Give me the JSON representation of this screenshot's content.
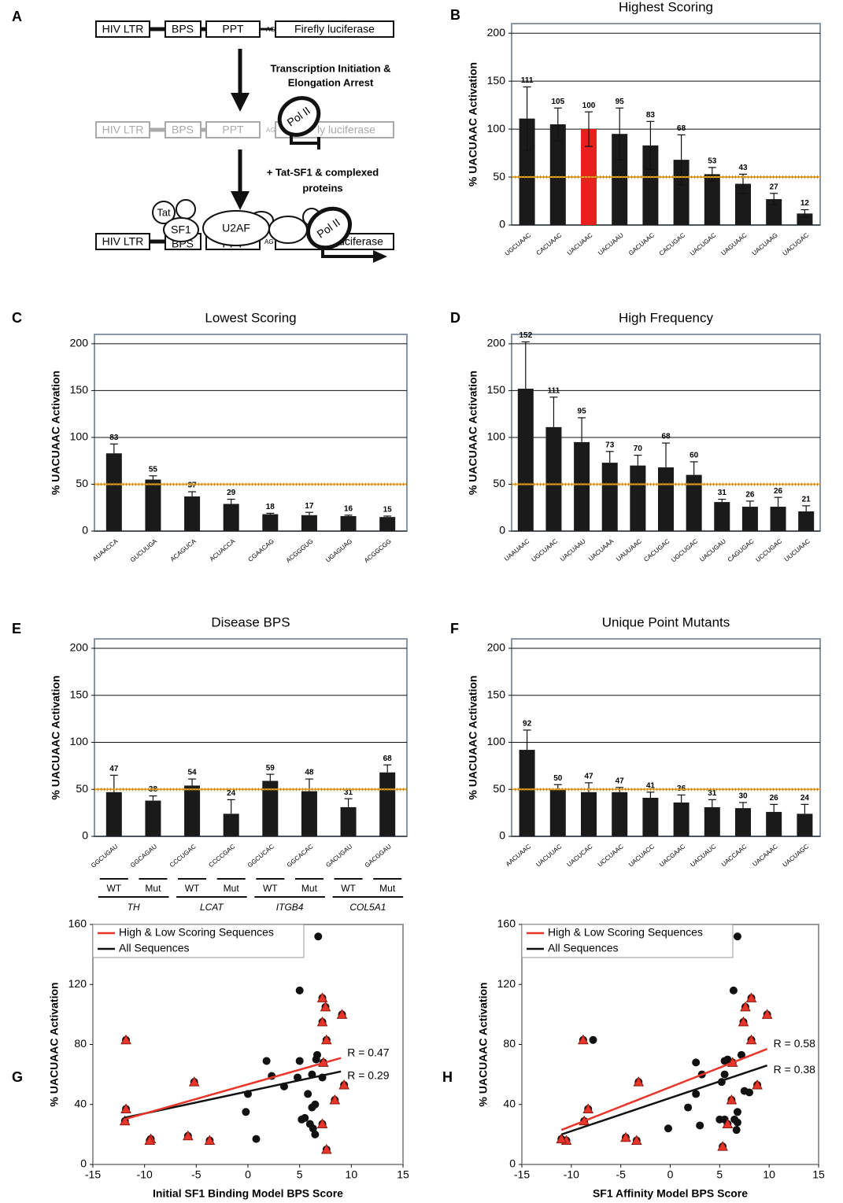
{
  "diagram": {
    "panel": "A",
    "step1": {
      "boxes": [
        "HIV LTR",
        "BPS",
        "PPT",
        "Firefly luciferase"
      ],
      "ag": "AG"
    },
    "arrow1": [
      "Transcription Initiation &",
      "Elongation Arrest"
    ],
    "step2": {
      "boxes": [
        "HIV LTR",
        "BPS",
        "PPT",
        "ly luciferase"
      ],
      "ag": "AG",
      "pol": "Pol II"
    },
    "arrow2": [
      "+ Tat-SF1 & complexed",
      "proteins"
    ],
    "step3": {
      "boxes": [
        "HIV LTR",
        "BPS",
        "PPT",
        "ly luciferase"
      ],
      "ag": "AG",
      "factors": [
        "Tat",
        "SF1",
        "U2AF"
      ],
      "pol": "Pol II"
    }
  },
  "chart_data": [
    {
      "type": "bar",
      "panel": "B",
      "title": "Highest Scoring",
      "ylabel": "% UACUAAC Activation",
      "categories": [
        "UGCUAAC",
        "CACUAAC",
        "UACUAAC",
        "UACUAAU",
        "GACUAAC",
        "CACUGAC",
        "UACUGAC",
        "UAGUAAC",
        "UACUAAG",
        "UACUGAC"
      ],
      "values": [
        111,
        105,
        100,
        95,
        83,
        68,
        53,
        43,
        27,
        12
      ],
      "errors": [
        33,
        17,
        18,
        27,
        25,
        26,
        7,
        10,
        6,
        4
      ],
      "error_bars": "both",
      "colors": [
        "#1a1a1a",
        "#1a1a1a",
        "#e8201e",
        "#1a1a1a",
        "#1a1a1a",
        "#1a1a1a",
        "#1a1a1a",
        "#1a1a1a",
        "#1a1a1a",
        "#1a1a1a"
      ],
      "threshold": 50,
      "ylim": [
        0,
        210
      ],
      "yticks": [
        0,
        50,
        100,
        150,
        200
      ],
      "grid": true
    },
    {
      "type": "bar",
      "panel": "C",
      "title": "Lowest Scoring",
      "ylabel": "% UACUAAC Activation",
      "categories": [
        "AUAACCA",
        "GUCUUGA",
        "ACAGUCA",
        "ACUACCA",
        "CGAACAG",
        "ACGGGUG",
        "UGAGUAG",
        "ACGGCGG"
      ],
      "values": [
        83,
        55,
        37,
        29,
        18,
        17,
        16,
        15
      ],
      "errors": [
        10,
        4,
        5,
        5,
        1,
        3,
        1,
        1
      ],
      "error_bars": "up",
      "color": "#1a1a1a",
      "threshold": 50,
      "ylim": [
        0,
        210
      ],
      "yticks": [
        0,
        50,
        100,
        150,
        200
      ],
      "grid": true
    },
    {
      "type": "bar",
      "panel": "D",
      "title": "High Frequency",
      "ylabel": "% UACUAAC Activation",
      "categories": [
        "UAAUAAC",
        "UGCUAAC",
        "UACUAAU",
        "UACUAAA",
        "UAUUAAC",
        "CACUGAC",
        "UGCUGAC",
        "UACUGAU",
        "CAGUGAC",
        "UCCUGAC",
        "UUCUAAC"
      ],
      "values": [
        152,
        111,
        95,
        73,
        70,
        68,
        60,
        31,
        26,
        26,
        21
      ],
      "errors": [
        50,
        32,
        26,
        12,
        11,
        26,
        14,
        3,
        6,
        10,
        6
      ],
      "error_bars": "up",
      "color": "#1a1a1a",
      "threshold": 50,
      "ylim": [
        0,
        210
      ],
      "yticks": [
        0,
        50,
        100,
        150,
        200
      ],
      "grid": true
    },
    {
      "type": "bar",
      "panel": "E",
      "title": "Disease BPS",
      "ylabel": "% UACUAAC Activation",
      "categories": [
        "GGCUGAU",
        "GGCAGAU",
        "CCCUGAC",
        "CCCCGAC",
        "GGCUCAC",
        "GGCACAC",
        "GACUGAU",
        "GACGGAU"
      ],
      "values": [
        47,
        38,
        54,
        24,
        59,
        48,
        31,
        68
      ],
      "errors": [
        18,
        5,
        7,
        15,
        7,
        13,
        9,
        8
      ],
      "error_bars": "up",
      "color": "#1a1a1a",
      "subgroups": [
        "WT",
        "Mut",
        "WT",
        "Mut",
        "WT",
        "Mut",
        "WT",
        "Mut"
      ],
      "groups": [
        "TH",
        "LCAT",
        "ITGB4",
        "COL5A1"
      ],
      "threshold": 50,
      "ylim": [
        0,
        210
      ],
      "yticks": [
        0,
        50,
        100,
        150,
        200
      ],
      "grid": true
    },
    {
      "type": "bar",
      "panel": "F",
      "title": "Unique Point Mutants",
      "ylabel": "% UACUAAC Activation",
      "categories": [
        "AACUAAC",
        "UACUUAC",
        "UACUCAC",
        "UCCUAAC",
        "UACUACC",
        "UACGAAC",
        "UACUAUC",
        "UACCAAC",
        "UACAAAC",
        "UACUAGC"
      ],
      "values": [
        92,
        50,
        47,
        47,
        41,
        36,
        31,
        30,
        26,
        24
      ],
      "errors": [
        21,
        5,
        10,
        5,
        6,
        8,
        8,
        6,
        8,
        10
      ],
      "error_bars": "up",
      "color": "#1a1a1a",
      "threshold": 50,
      "ylim": [
        0,
        210
      ],
      "yticks": [
        0,
        50,
        100,
        150,
        200
      ],
      "grid": true
    },
    {
      "type": "scatter",
      "panel": "G",
      "xlabel": "Initial SF1 Binding Model BPS Score",
      "ylabel": "% UACUAAC Activation",
      "xlim": [
        -15,
        15
      ],
      "xticks": [
        -15,
        -10,
        -5,
        0,
        5,
        10,
        15
      ],
      "ylim": [
        0,
        160
      ],
      "yticks": [
        0,
        40,
        80,
        120,
        160
      ],
      "legend": "top-left",
      "series": [
        {
          "name": "High & Low Scoring Sequences",
          "color": "#e8352a",
          "marker": "triangle",
          "x": [
            7.2,
            7.5,
            9.1,
            7.2,
            7.6,
            7.3,
            9.3,
            8.4,
            7.2,
            7.6,
            -11.8,
            -5.2,
            -11.8,
            -11.9,
            -5.8,
            -9.4,
            -3.7,
            -9.5
          ],
          "y": [
            111,
            105,
            100,
            95,
            83,
            68,
            53,
            43,
            27,
            10,
            83,
            55,
            37,
            29,
            19,
            17,
            16,
            16
          ],
          "fit_x": [
            -12,
            9
          ],
          "fit_y": [
            30,
            71
          ],
          "r_label": "R = 0.47"
        },
        {
          "name": "All Sequences",
          "color": "#111111",
          "marker": "circle",
          "x": [
            7.2,
            7.5,
            9.1,
            7.2,
            7.6,
            7.3,
            9.3,
            8.4,
            7.2,
            7.6,
            -11.8,
            -5.2,
            -11.8,
            -11.9,
            -5.8,
            -9.4,
            -3.7,
            -9.5,
            6.8,
            5,
            6.7,
            6.6,
            5,
            1.8,
            2.3,
            0,
            -0.2,
            0.8,
            3.5,
            5.8,
            6.5,
            6.2,
            5.5,
            5.2,
            6,
            6.3,
            6.5,
            7.2,
            4.8,
            6.2
          ],
          "y": [
            111,
            105,
            100,
            95,
            83,
            68,
            53,
            43,
            27,
            10,
            83,
            55,
            37,
            29,
            19,
            17,
            16,
            16,
            152,
            116,
            73,
            70,
            69,
            69,
            59,
            47,
            35,
            17,
            52,
            47,
            40,
            38,
            31,
            30,
            27,
            24,
            20,
            58,
            58,
            60
          ],
          "fit_x": [
            -12,
            9
          ],
          "fit_y": [
            31,
            62
          ],
          "r_label": "R = 0.29"
        }
      ]
    },
    {
      "type": "scatter",
      "panel": "H",
      "xlabel": "SF1 Affinity Model BPS Score",
      "ylabel": "% UACUAAC Activation",
      "xlim": [
        -15,
        15
      ],
      "xticks": [
        -15,
        -10,
        -5,
        0,
        5,
        10,
        15
      ],
      "ylim": [
        0,
        160
      ],
      "yticks": [
        0,
        40,
        80,
        120,
        160
      ],
      "legend": "top-left",
      "series": [
        {
          "name": "High & Low Scoring Sequences",
          "color": "#e8352a",
          "marker": "triangle",
          "x": [
            8.2,
            7.6,
            9.8,
            7.4,
            8.2,
            6.3,
            8.8,
            6.2,
            5.8,
            5.3,
            -8.8,
            -3.2,
            -8.3,
            -8.7,
            -4.5,
            -10.5,
            -11,
            -3.4
          ],
          "y": [
            111,
            105,
            100,
            95,
            83,
            68,
            53,
            43,
            27,
            12,
            83,
            55,
            37,
            29,
            18,
            16,
            17,
            16
          ],
          "fit_x": [
            -11,
            9.8
          ],
          "fit_y": [
            23,
            77
          ],
          "r_label": "R = 0.58"
        },
        {
          "name": "All Sequences",
          "color": "#111111",
          "marker": "circle",
          "x": [
            8.2,
            7.6,
            9.8,
            7.4,
            8.2,
            6.3,
            8.8,
            6.2,
            5.8,
            5.3,
            -8.8,
            -3.2,
            -8.3,
            -8.7,
            -4.5,
            -10.5,
            -11,
            -3.4,
            6.8,
            6.4,
            5.8,
            5.5,
            2.6,
            7.2,
            5.5,
            3.2,
            7.5,
            8,
            5.2,
            2.6,
            1.8,
            -0.2,
            3,
            5,
            5.5,
            6.5,
            6.8,
            6.7,
            6.8,
            -7.8
          ],
          "y": [
            111,
            105,
            100,
            95,
            83,
            68,
            53,
            43,
            27,
            12,
            83,
            55,
            37,
            29,
            18,
            16,
            17,
            16,
            152,
            116,
            70,
            69,
            68,
            73,
            60,
            60,
            49,
            48,
            55,
            47,
            38,
            24,
            26,
            30,
            30,
            30,
            28,
            23,
            35,
            83
          ],
          "fit_x": [
            -11,
            9.8
          ],
          "fit_y": [
            20,
            66
          ],
          "r_label": "R = 0.38"
        }
      ]
    }
  ]
}
